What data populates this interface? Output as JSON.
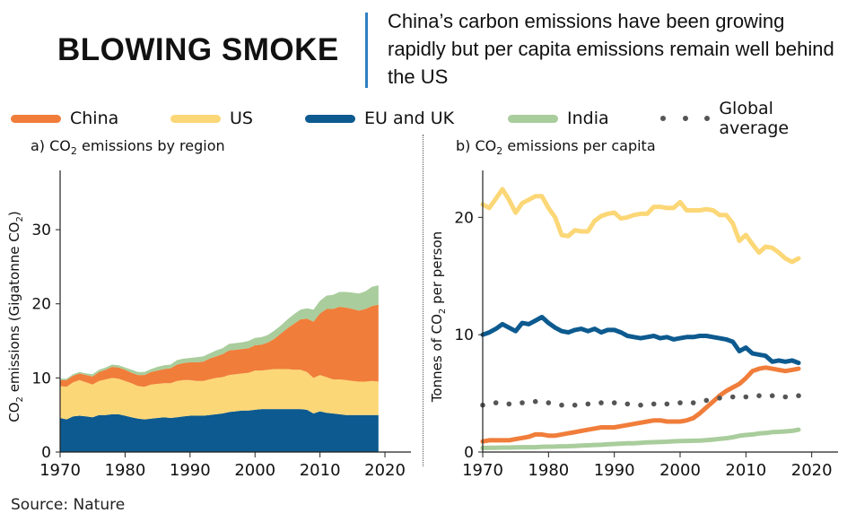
{
  "header": {
    "title": "BLOWING SMOKE",
    "subtitle": "China’s carbon emissions have been growing rapidly but per capita emissions remain well behind the US"
  },
  "legend": [
    {
      "name": "China",
      "color": "#f07d3a",
      "style": "line"
    },
    {
      "name": "US",
      "color": "#fcd777",
      "style": "line"
    },
    {
      "name": "EU and UK",
      "color": "#0c5a8f",
      "style": "line"
    },
    {
      "name": "India",
      "color": "#a9cd9c",
      "style": "line"
    },
    {
      "name": "Global average",
      "color": "#555555",
      "style": "dots"
    }
  ],
  "source": "Source: Nature",
  "chart_data": [
    {
      "type": "area",
      "panel_label_prefix": "a) CO",
      "panel_label_sub": "2",
      "panel_label_suffix": " emissions by region",
      "ylabel_prefix": "CO",
      "ylabel_sub": "2",
      "ylabel_middle": " emissions (Gigatonne CO",
      "ylabel_sub2": "2",
      "ylabel_suffix": ")",
      "xlim": [
        1970,
        2024
      ],
      "ylim": [
        0,
        38
      ],
      "x_ticks": [
        1970,
        1980,
        1990,
        2000,
        2010,
        2020
      ],
      "y_ticks": [
        0,
        10,
        20,
        30
      ],
      "x": [
        1970,
        1971,
        1972,
        1973,
        1974,
        1975,
        1976,
        1977,
        1978,
        1979,
        1980,
        1981,
        1982,
        1983,
        1984,
        1985,
        1986,
        1987,
        1988,
        1989,
        1990,
        1991,
        1992,
        1993,
        1994,
        1995,
        1996,
        1997,
        1998,
        1999,
        2000,
        2001,
        2002,
        2003,
        2004,
        2005,
        2006,
        2007,
        2008,
        2009,
        2010,
        2011,
        2012,
        2013,
        2014,
        2015,
        2016,
        2017,
        2018,
        2019
      ],
      "stacking_order": [
        "EU and UK",
        "US",
        "China",
        "India"
      ],
      "series": [
        {
          "name": "EU and UK",
          "color": "#0c5a8f",
          "values": [
            4.6,
            4.4,
            4.8,
            4.9,
            4.8,
            4.7,
            5.0,
            5.0,
            5.1,
            5.1,
            4.9,
            4.7,
            4.5,
            4.4,
            4.5,
            4.6,
            4.7,
            4.6,
            4.7,
            4.8,
            4.9,
            4.9,
            4.9,
            5.0,
            5.1,
            5.2,
            5.4,
            5.5,
            5.6,
            5.6,
            5.7,
            5.8,
            5.8,
            5.8,
            5.8,
            5.8,
            5.8,
            5.8,
            5.7,
            5.2,
            5.5,
            5.3,
            5.2,
            5.1,
            5.0,
            5.0,
            5.0,
            5.0,
            5.0,
            5.0
          ]
        },
        {
          "name": "US",
          "color": "#fcd777",
          "values": [
            4.3,
            4.4,
            4.6,
            4.8,
            4.6,
            4.4,
            4.6,
            4.8,
            4.9,
            4.8,
            4.7,
            4.6,
            4.4,
            4.4,
            4.6,
            4.6,
            4.6,
            4.7,
            4.9,
            4.9,
            4.8,
            4.7,
            4.7,
            4.8,
            4.9,
            4.9,
            5.0,
            5.0,
            5.0,
            5.1,
            5.3,
            5.2,
            5.3,
            5.4,
            5.4,
            5.4,
            5.3,
            5.3,
            5.1,
            4.8,
            4.9,
            4.8,
            4.6,
            4.7,
            4.7,
            4.6,
            4.5,
            4.5,
            4.6,
            4.5
          ]
        },
        {
          "name": "China",
          "color": "#f07d3a",
          "values": [
            0.8,
            0.9,
            0.9,
            0.9,
            1.0,
            1.1,
            1.2,
            1.3,
            1.5,
            1.5,
            1.5,
            1.4,
            1.5,
            1.6,
            1.7,
            1.8,
            1.9,
            2.0,
            2.2,
            2.3,
            2.4,
            2.5,
            2.6,
            2.8,
            2.9,
            3.1,
            3.3,
            3.3,
            3.3,
            3.3,
            3.4,
            3.5,
            3.7,
            4.1,
            4.8,
            5.5,
            6.2,
            6.8,
            7.2,
            7.6,
            8.3,
            9.2,
            9.5,
            9.8,
            9.8,
            9.7,
            9.6,
            9.8,
            10.1,
            10.4
          ]
        },
        {
          "name": "India",
          "color": "#a9cd9c",
          "values": [
            0.2,
            0.2,
            0.2,
            0.2,
            0.2,
            0.3,
            0.3,
            0.3,
            0.3,
            0.3,
            0.3,
            0.4,
            0.4,
            0.4,
            0.4,
            0.5,
            0.5,
            0.5,
            0.6,
            0.6,
            0.6,
            0.7,
            0.7,
            0.7,
            0.8,
            0.8,
            0.9,
            0.9,
            0.9,
            1.0,
            1.0,
            1.0,
            1.0,
            1.1,
            1.1,
            1.2,
            1.3,
            1.3,
            1.4,
            1.6,
            1.7,
            1.8,
            1.9,
            2.0,
            2.1,
            2.2,
            2.3,
            2.4,
            2.6,
            2.6
          ]
        }
      ]
    },
    {
      "type": "line",
      "panel_label_prefix": "b) CO",
      "panel_label_sub": "2",
      "panel_label_suffix": " emissions per capita",
      "ylabel_prefix": "Tonnes of CO",
      "ylabel_sub": "2",
      "ylabel_suffix": " per person",
      "xlim": [
        1970,
        2024
      ],
      "ylim": [
        0,
        24
      ],
      "x_ticks": [
        1970,
        1980,
        1990,
        2000,
        2010,
        2020
      ],
      "y_ticks": [
        0,
        10,
        20
      ],
      "x": [
        1970,
        1971,
        1972,
        1973,
        1974,
        1975,
        1976,
        1977,
        1978,
        1979,
        1980,
        1981,
        1982,
        1983,
        1984,
        1985,
        1986,
        1987,
        1988,
        1989,
        1990,
        1991,
        1992,
        1993,
        1994,
        1995,
        1996,
        1997,
        1998,
        1999,
        2000,
        2001,
        2002,
        2003,
        2004,
        2005,
        2006,
        2007,
        2008,
        2009,
        2010,
        2011,
        2012,
        2013,
        2014,
        2015,
        2016,
        2017,
        2018
      ],
      "series": [
        {
          "name": "US",
          "color": "#fcd777",
          "style": "line",
          "values": [
            21.1,
            20.8,
            21.6,
            22.4,
            21.5,
            20.4,
            21.2,
            21.5,
            21.8,
            21.8,
            20.8,
            20.0,
            18.5,
            18.4,
            18.9,
            18.8,
            18.8,
            19.7,
            20.1,
            20.3,
            20.4,
            19.9,
            20.0,
            20.2,
            20.3,
            20.3,
            20.9,
            20.9,
            20.8,
            20.8,
            21.3,
            20.6,
            20.6,
            20.6,
            20.7,
            20.6,
            20.2,
            20.2,
            19.5,
            18.0,
            18.5,
            17.7,
            17.0,
            17.5,
            17.4,
            17.0,
            16.5,
            16.2,
            16.5
          ]
        },
        {
          "name": "EU and UK",
          "color": "#0c5a8f",
          "style": "line",
          "values": [
            10.0,
            10.2,
            10.5,
            10.9,
            10.6,
            10.3,
            11.0,
            10.9,
            11.2,
            11.5,
            11.0,
            10.6,
            10.3,
            10.2,
            10.4,
            10.5,
            10.3,
            10.5,
            10.2,
            10.4,
            10.4,
            10.2,
            9.9,
            9.8,
            9.7,
            9.8,
            9.9,
            9.7,
            9.8,
            9.6,
            9.7,
            9.8,
            9.8,
            9.9,
            9.9,
            9.8,
            9.7,
            9.6,
            9.4,
            8.6,
            8.9,
            8.4,
            8.3,
            8.2,
            7.7,
            7.8,
            7.7,
            7.8,
            7.6
          ]
        },
        {
          "name": "China",
          "color": "#f07d3a",
          "style": "line",
          "values": [
            0.9,
            1.0,
            1.0,
            1.0,
            1.0,
            1.1,
            1.2,
            1.3,
            1.5,
            1.5,
            1.4,
            1.4,
            1.5,
            1.6,
            1.7,
            1.8,
            1.9,
            2.0,
            2.1,
            2.1,
            2.1,
            2.2,
            2.3,
            2.4,
            2.5,
            2.6,
            2.7,
            2.7,
            2.6,
            2.6,
            2.6,
            2.7,
            2.9,
            3.3,
            3.8,
            4.3,
            4.8,
            5.2,
            5.5,
            5.8,
            6.3,
            6.9,
            7.1,
            7.2,
            7.1,
            7.0,
            6.9,
            7.0,
            7.1
          ]
        },
        {
          "name": "India",
          "color": "#a9cd9c",
          "style": "line",
          "values": [
            0.35,
            0.36,
            0.37,
            0.38,
            0.38,
            0.4,
            0.41,
            0.41,
            0.41,
            0.45,
            0.46,
            0.47,
            0.49,
            0.5,
            0.52,
            0.55,
            0.57,
            0.6,
            0.62,
            0.66,
            0.69,
            0.72,
            0.74,
            0.75,
            0.78,
            0.82,
            0.84,
            0.86,
            0.88,
            0.92,
            0.94,
            0.95,
            0.96,
            0.98,
            1.02,
            1.06,
            1.12,
            1.18,
            1.26,
            1.38,
            1.45,
            1.5,
            1.58,
            1.62,
            1.7,
            1.72,
            1.76,
            1.8,
            1.9
          ]
        },
        {
          "name": "Global average",
          "color": "#555555",
          "style": "dots",
          "values": [
            4.0,
            4.1,
            4.2,
            4.3,
            4.1,
            4.1,
            4.2,
            4.2,
            4.3,
            4.3,
            4.2,
            4.1,
            4.0,
            4.0,
            4.0,
            4.1,
            4.1,
            4.1,
            4.2,
            4.2,
            4.2,
            4.2,
            4.1,
            4.0,
            4.0,
            4.0,
            4.1,
            4.1,
            4.1,
            4.1,
            4.2,
            4.2,
            4.2,
            4.3,
            4.4,
            4.5,
            4.6,
            4.7,
            4.7,
            4.6,
            4.7,
            4.8,
            4.8,
            4.8,
            4.8,
            4.7,
            4.7,
            4.7,
            4.8
          ]
        }
      ]
    }
  ]
}
